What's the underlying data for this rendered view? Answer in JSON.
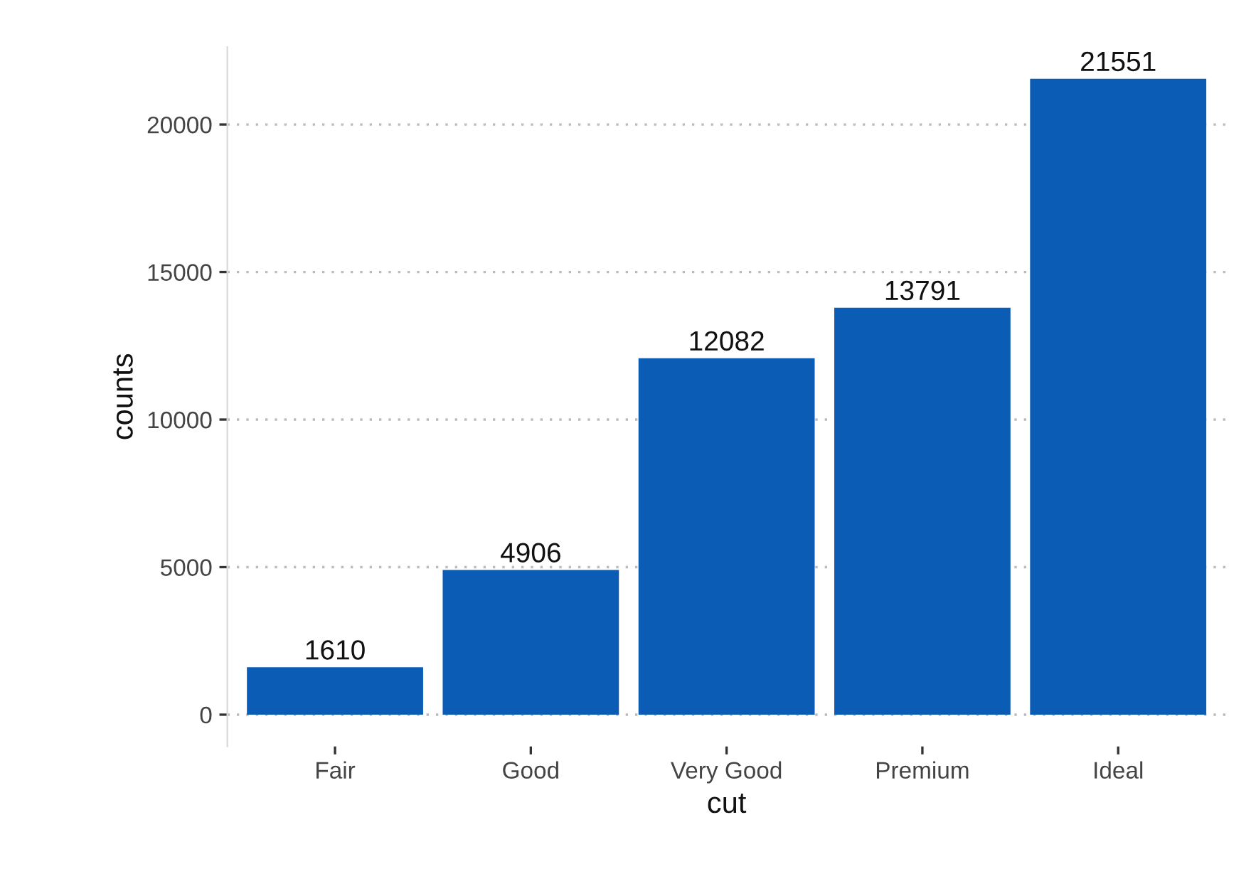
{
  "chart_data": {
    "type": "bar",
    "xlabel": "cut",
    "ylabel": "counts",
    "categories": [
      "Fair",
      "Good",
      "Very Good",
      "Premium",
      "Ideal"
    ],
    "values": [
      1610,
      4906,
      12082,
      13791,
      21551
    ],
    "color": "#0b5cb5",
    "ylim": [
      -1078,
      22629
    ],
    "yticks": [
      0,
      5000,
      10000,
      15000,
      20000
    ],
    "grid": "y",
    "data_labels": true
  }
}
